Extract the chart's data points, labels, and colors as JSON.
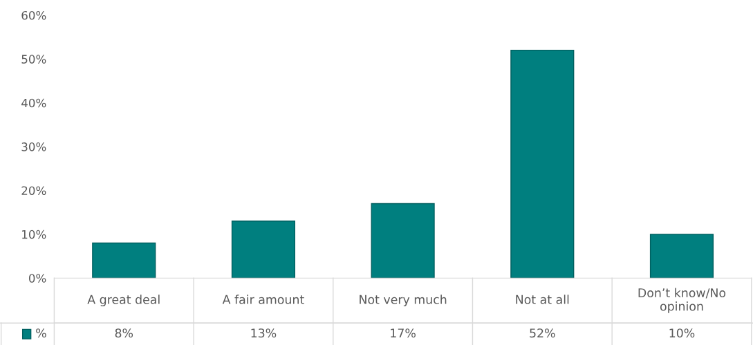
{
  "chart_data": {
    "type": "bar",
    "categories": [
      "A great deal",
      "A fair amount",
      "Not very much",
      "Not at all",
      "Don’t know/No opinion"
    ],
    "series": [
      {
        "name": "%",
        "color": "#007f7f",
        "values": [
          8,
          13,
          17,
          52,
          10
        ]
      }
    ],
    "ylim": [
      0,
      60
    ],
    "yticks": [
      {
        "value": 0,
        "label": "0%"
      },
      {
        "value": 10,
        "label": "10%"
      },
      {
        "value": 20,
        "label": "20%"
      },
      {
        "value": 30,
        "label": "30%"
      },
      {
        "value": 40,
        "label": "40%"
      },
      {
        "value": 50,
        "label": "50%"
      },
      {
        "value": 60,
        "label": "60%"
      }
    ],
    "value_labels": [
      "8%",
      "13%",
      "17%",
      "52%",
      "10%"
    ],
    "grid": false
  }
}
